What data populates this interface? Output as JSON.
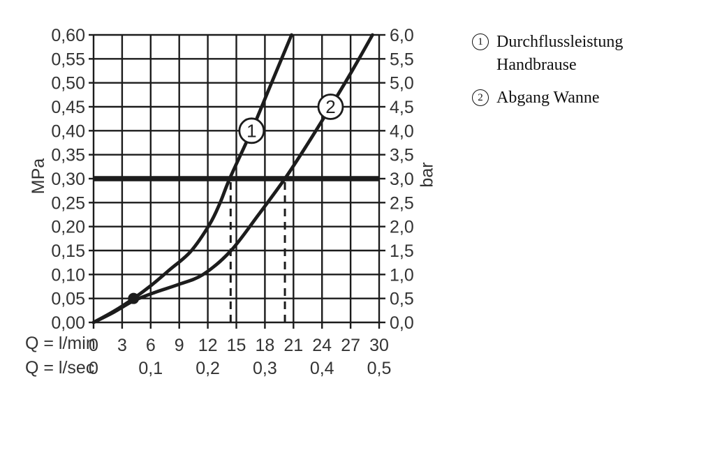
{
  "page": {
    "background": "#ffffff"
  },
  "legend": {
    "items": [
      {
        "symbol": "1",
        "label": "Durchflussleistung Handbrause"
      },
      {
        "symbol": "2",
        "label": "Abgang Wanne"
      }
    ]
  },
  "chart_data": {
    "type": "line",
    "title": "",
    "grid": true,
    "colors": {
      "ink": "#1c1c1c",
      "text": "#333333",
      "background": "#ffffff"
    },
    "x_axis": {
      "label_lmin": "Q = l/min",
      "label_lsec": "Q = l/sec",
      "range_lmin": [
        0,
        30
      ],
      "tick_step_lmin": 3,
      "tick_labels_lmin": [
        "0",
        "3",
        "6",
        "9",
        "12",
        "15",
        "18",
        "21",
        "24",
        "27",
        "30"
      ],
      "tick_labels_lsec": [
        "0",
        "0,1",
        "0,2",
        "0,3",
        "0,4",
        "0,5"
      ],
      "tick_positions_lsec_in_lmin": [
        0,
        6,
        12,
        18,
        24,
        30
      ]
    },
    "y_axis_left": {
      "unit": "MPa",
      "range": [
        0,
        0.6
      ],
      "tick_step": 0.05,
      "tick_labels_top_to_bottom": [
        "0,60",
        "0,55",
        "0,50",
        "0,45",
        "0,40",
        "0,35",
        "0,30",
        "0,25",
        "0,20",
        "0,15",
        "0,10",
        "0,05",
        "0,00"
      ]
    },
    "y_axis_right": {
      "unit": "bar",
      "range": [
        0,
        6
      ],
      "tick_step": 0.5,
      "tick_labels_top_to_bottom": [
        "6,0",
        "5,5",
        "5,0",
        "4,5",
        "4,0",
        "3,5",
        "3,0",
        "2,5",
        "2,0",
        "1,5",
        "1,0",
        "0,5",
        "0,0"
      ]
    },
    "reference_line_mpa": 0.3,
    "dashed_guides_lmin": [
      14.4,
      20.1
    ],
    "series": [
      {
        "name": "Durchflussleistung Handbrause",
        "marker_label": "1",
        "marker_at": [
          16.6,
          0.4
        ],
        "dot_at": [
          4.2,
          0.05
        ],
        "points": [
          [
            0,
            0
          ],
          [
            2.1,
            0.023
          ],
          [
            4.2,
            0.05
          ],
          [
            6.1,
            0.078
          ],
          [
            8,
            0.11
          ],
          [
            10.2,
            0.148
          ],
          [
            12.2,
            0.205
          ],
          [
            13.3,
            0.25
          ],
          [
            14.3,
            0.3
          ],
          [
            16.6,
            0.4
          ],
          [
            18.7,
            0.5
          ],
          [
            20.8,
            0.6
          ]
        ]
      },
      {
        "name": "Abgang Wanne",
        "marker_label": "2",
        "marker_at": [
          24.9,
          0.45
        ],
        "points": [
          [
            0,
            0
          ],
          [
            2.1,
            0.021
          ],
          [
            4.2,
            0.045
          ],
          [
            6.5,
            0.063
          ],
          [
            8.9,
            0.079
          ],
          [
            11.5,
            0.1
          ],
          [
            14.4,
            0.149
          ],
          [
            17.3,
            0.224
          ],
          [
            20.1,
            0.3
          ],
          [
            22.5,
            0.373
          ],
          [
            24.9,
            0.45
          ],
          [
            27.1,
            0.523
          ],
          [
            29.3,
            0.6
          ]
        ]
      }
    ]
  }
}
